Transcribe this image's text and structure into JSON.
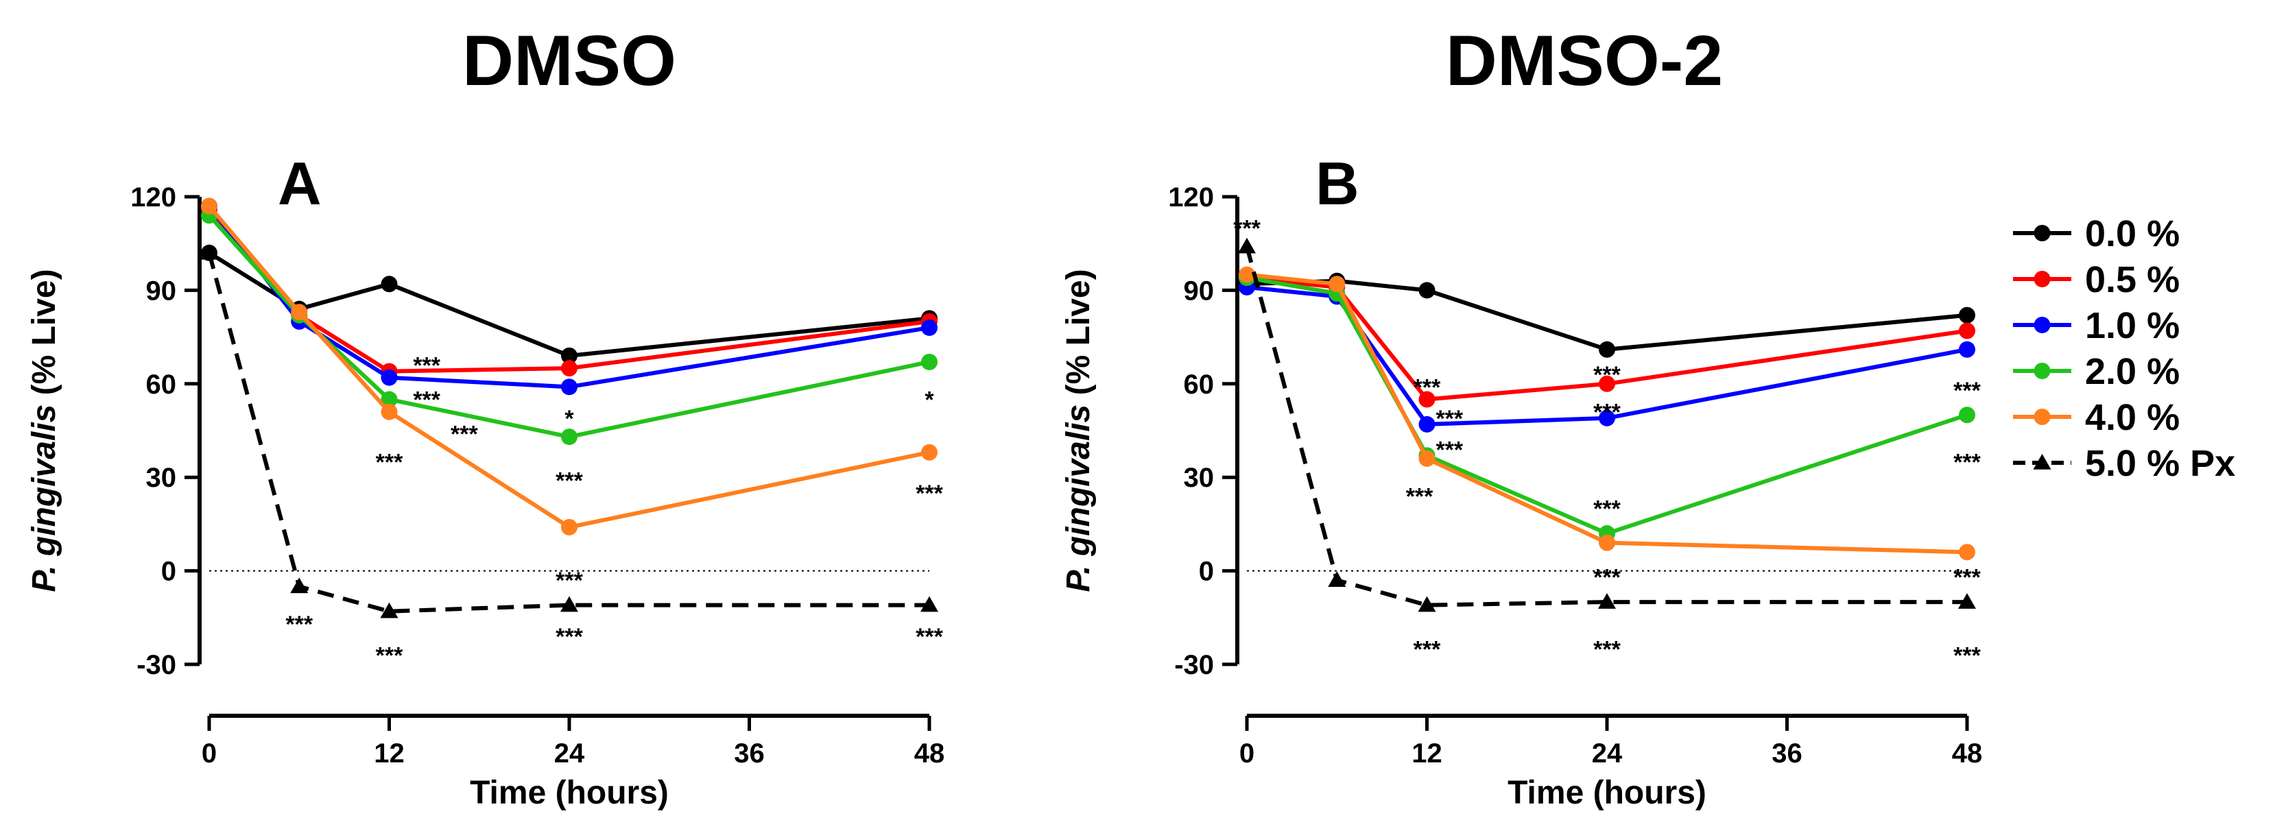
{
  "panel_titles": [
    "DMSO",
    "DMSO-2"
  ],
  "legend": [
    {
      "label": "0.0 %",
      "color": "#000000",
      "marker": "circle",
      "dashed": false
    },
    {
      "label": "0.5 %",
      "color": "#ff0000",
      "marker": "circle",
      "dashed": false
    },
    {
      "label": "1.0 %",
      "color": "#0000ff",
      "marker": "circle",
      "dashed": false
    },
    {
      "label": "2.0 %",
      "color": "#22c21c",
      "marker": "circle",
      "dashed": false
    },
    {
      "label": "4.0 %",
      "color": "#ff7f1e",
      "marker": "circle",
      "dashed": false
    },
    {
      "label": "5.0 % Px",
      "color": "#000000",
      "marker": "triangle",
      "dashed": true
    }
  ],
  "chart_data": [
    {
      "type": "line",
      "panel_label": "A",
      "title": "DMSO",
      "xlabel": "Time (hours)",
      "ylabel_italic": "P. gingivalis",
      "ylabel_rest": " (% Live)",
      "xlim": [
        0,
        48
      ],
      "ylim": [
        -30,
        120
      ],
      "xticks": [
        0,
        12,
        24,
        36,
        48
      ],
      "yticks": [
        -30,
        0,
        30,
        60,
        90,
        120
      ],
      "reference_line_y": 0,
      "x": [
        0,
        6,
        12,
        24,
        48
      ],
      "series": [
        {
          "name": "0.0 %",
          "color": "#000000",
          "marker": "circle",
          "dashed": false,
          "values": [
            102,
            84,
            92,
            69,
            81
          ]
        },
        {
          "name": "0.5 %",
          "color": "#ff0000",
          "marker": "circle",
          "dashed": false,
          "values": [
            116,
            82,
            64,
            65,
            80
          ]
        },
        {
          "name": "1.0 %",
          "color": "#0000ff",
          "marker": "circle",
          "dashed": false,
          "values": [
            117,
            80,
            62,
            59,
            78
          ]
        },
        {
          "name": "2.0 %",
          "color": "#22c21c",
          "marker": "circle",
          "dashed": false,
          "values": [
            114,
            82,
            55,
            43,
            67
          ]
        },
        {
          "name": "4.0 %",
          "color": "#ff7f1e",
          "marker": "circle",
          "dashed": false,
          "values": [
            117,
            83,
            51,
            14,
            38
          ]
        },
        {
          "name": "5.0 % Px",
          "color": "#000000",
          "marker": "triangle",
          "dashed": true,
          "values": [
            102,
            -5,
            -13,
            -11,
            -11
          ]
        }
      ],
      "annotations": [
        {
          "text": "***",
          "x": 14.5,
          "y": 66
        },
        {
          "text": "***",
          "x": 14.5,
          "y": 55
        },
        {
          "text": "***",
          "x": 17,
          "y": 44
        },
        {
          "text": "***",
          "x": 12,
          "y": 35
        },
        {
          "text": "*",
          "x": 24,
          "y": 49
        },
        {
          "text": "***",
          "x": 24,
          "y": 29
        },
        {
          "text": "***",
          "x": 24,
          "y": -3
        },
        {
          "text": "***",
          "x": 24,
          "y": -21
        },
        {
          "text": "***",
          "x": 12,
          "y": -27
        },
        {
          "text": "***",
          "x": 6,
          "y": -17
        },
        {
          "text": "*",
          "x": 48,
          "y": 55
        },
        {
          "text": "***",
          "x": 48,
          "y": 25
        },
        {
          "text": "***",
          "x": 48,
          "y": -21
        }
      ]
    },
    {
      "type": "line",
      "panel_label": "B",
      "title": "DMSO-2",
      "xlabel": "Time (hours)",
      "ylabel_italic": "P. gingivalis",
      "ylabel_rest": " (% Live)",
      "xlim": [
        0,
        48
      ],
      "ylim": [
        -30,
        120
      ],
      "xticks": [
        0,
        12,
        24,
        36,
        48
      ],
      "yticks": [
        -30,
        0,
        30,
        60,
        90,
        120
      ],
      "reference_line_y": 0,
      "x": [
        0,
        6,
        12,
        24,
        48
      ],
      "series": [
        {
          "name": "0.0 %",
          "color": "#000000",
          "marker": "circle",
          "dashed": false,
          "values": [
            92,
            93,
            90,
            71,
            82
          ]
        },
        {
          "name": "0.5 %",
          "color": "#ff0000",
          "marker": "circle",
          "dashed": false,
          "values": [
            94,
            91,
            55,
            60,
            77
          ]
        },
        {
          "name": "1.0 %",
          "color": "#0000ff",
          "marker": "circle",
          "dashed": false,
          "values": [
            91,
            88,
            47,
            49,
            71
          ]
        },
        {
          "name": "2.0 %",
          "color": "#22c21c",
          "marker": "circle",
          "dashed": false,
          "values": [
            94,
            89,
            37,
            12,
            50
          ]
        },
        {
          "name": "4.0 %",
          "color": "#ff7f1e",
          "marker": "circle",
          "dashed": false,
          "values": [
            95,
            92,
            36,
            9,
            6
          ]
        },
        {
          "name": "5.0 % Px",
          "color": "#000000",
          "marker": "triangle",
          "dashed": true,
          "values": [
            104,
            -3,
            -11,
            -10,
            -10
          ]
        }
      ],
      "annotations": [
        {
          "text": "***",
          "x": 0,
          "y": 110
        },
        {
          "text": "***",
          "x": 12,
          "y": 59
        },
        {
          "text": "***",
          "x": 13.5,
          "y": 49
        },
        {
          "text": "***",
          "x": 13.5,
          "y": 39
        },
        {
          "text": "***",
          "x": 11.5,
          "y": 24
        },
        {
          "text": "***",
          "x": 24,
          "y": 63
        },
        {
          "text": "***",
          "x": 24,
          "y": 51
        },
        {
          "text": "***",
          "x": 24,
          "y": 20
        },
        {
          "text": "***",
          "x": 24,
          "y": -2
        },
        {
          "text": "***",
          "x": 24,
          "y": -25
        },
        {
          "text": "***",
          "x": 12,
          "y": -25
        },
        {
          "text": "***",
          "x": 48,
          "y": 58
        },
        {
          "text": "***",
          "x": 48,
          "y": 35
        },
        {
          "text": "***",
          "x": 48,
          "y": -2
        },
        {
          "text": "***",
          "x": 48,
          "y": -27
        }
      ]
    }
  ]
}
